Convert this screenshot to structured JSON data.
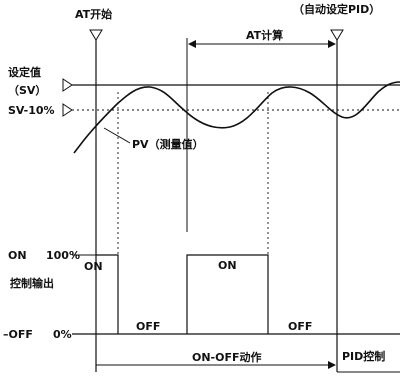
{
  "labels": {
    "at_start": "AT开始",
    "auto_set_pid": "（自动设定PID）",
    "at_calc": "AT计算",
    "setpoint": "设定值",
    "sv": "（SV）",
    "sv_minus_10": "SV-10%",
    "pv": "PV（测量值）",
    "on_left": "ON",
    "pct_100": "100%",
    "control_output": "控制输出",
    "on_box_1": "ON",
    "on_box_2": "ON",
    "off_1": "OFF",
    "off_2": "OFF",
    "off_left": "–OFF",
    "pct_0": "0%",
    "onoff_action": "ON-OFF动作",
    "pid_control": "PID控制"
  }
}
